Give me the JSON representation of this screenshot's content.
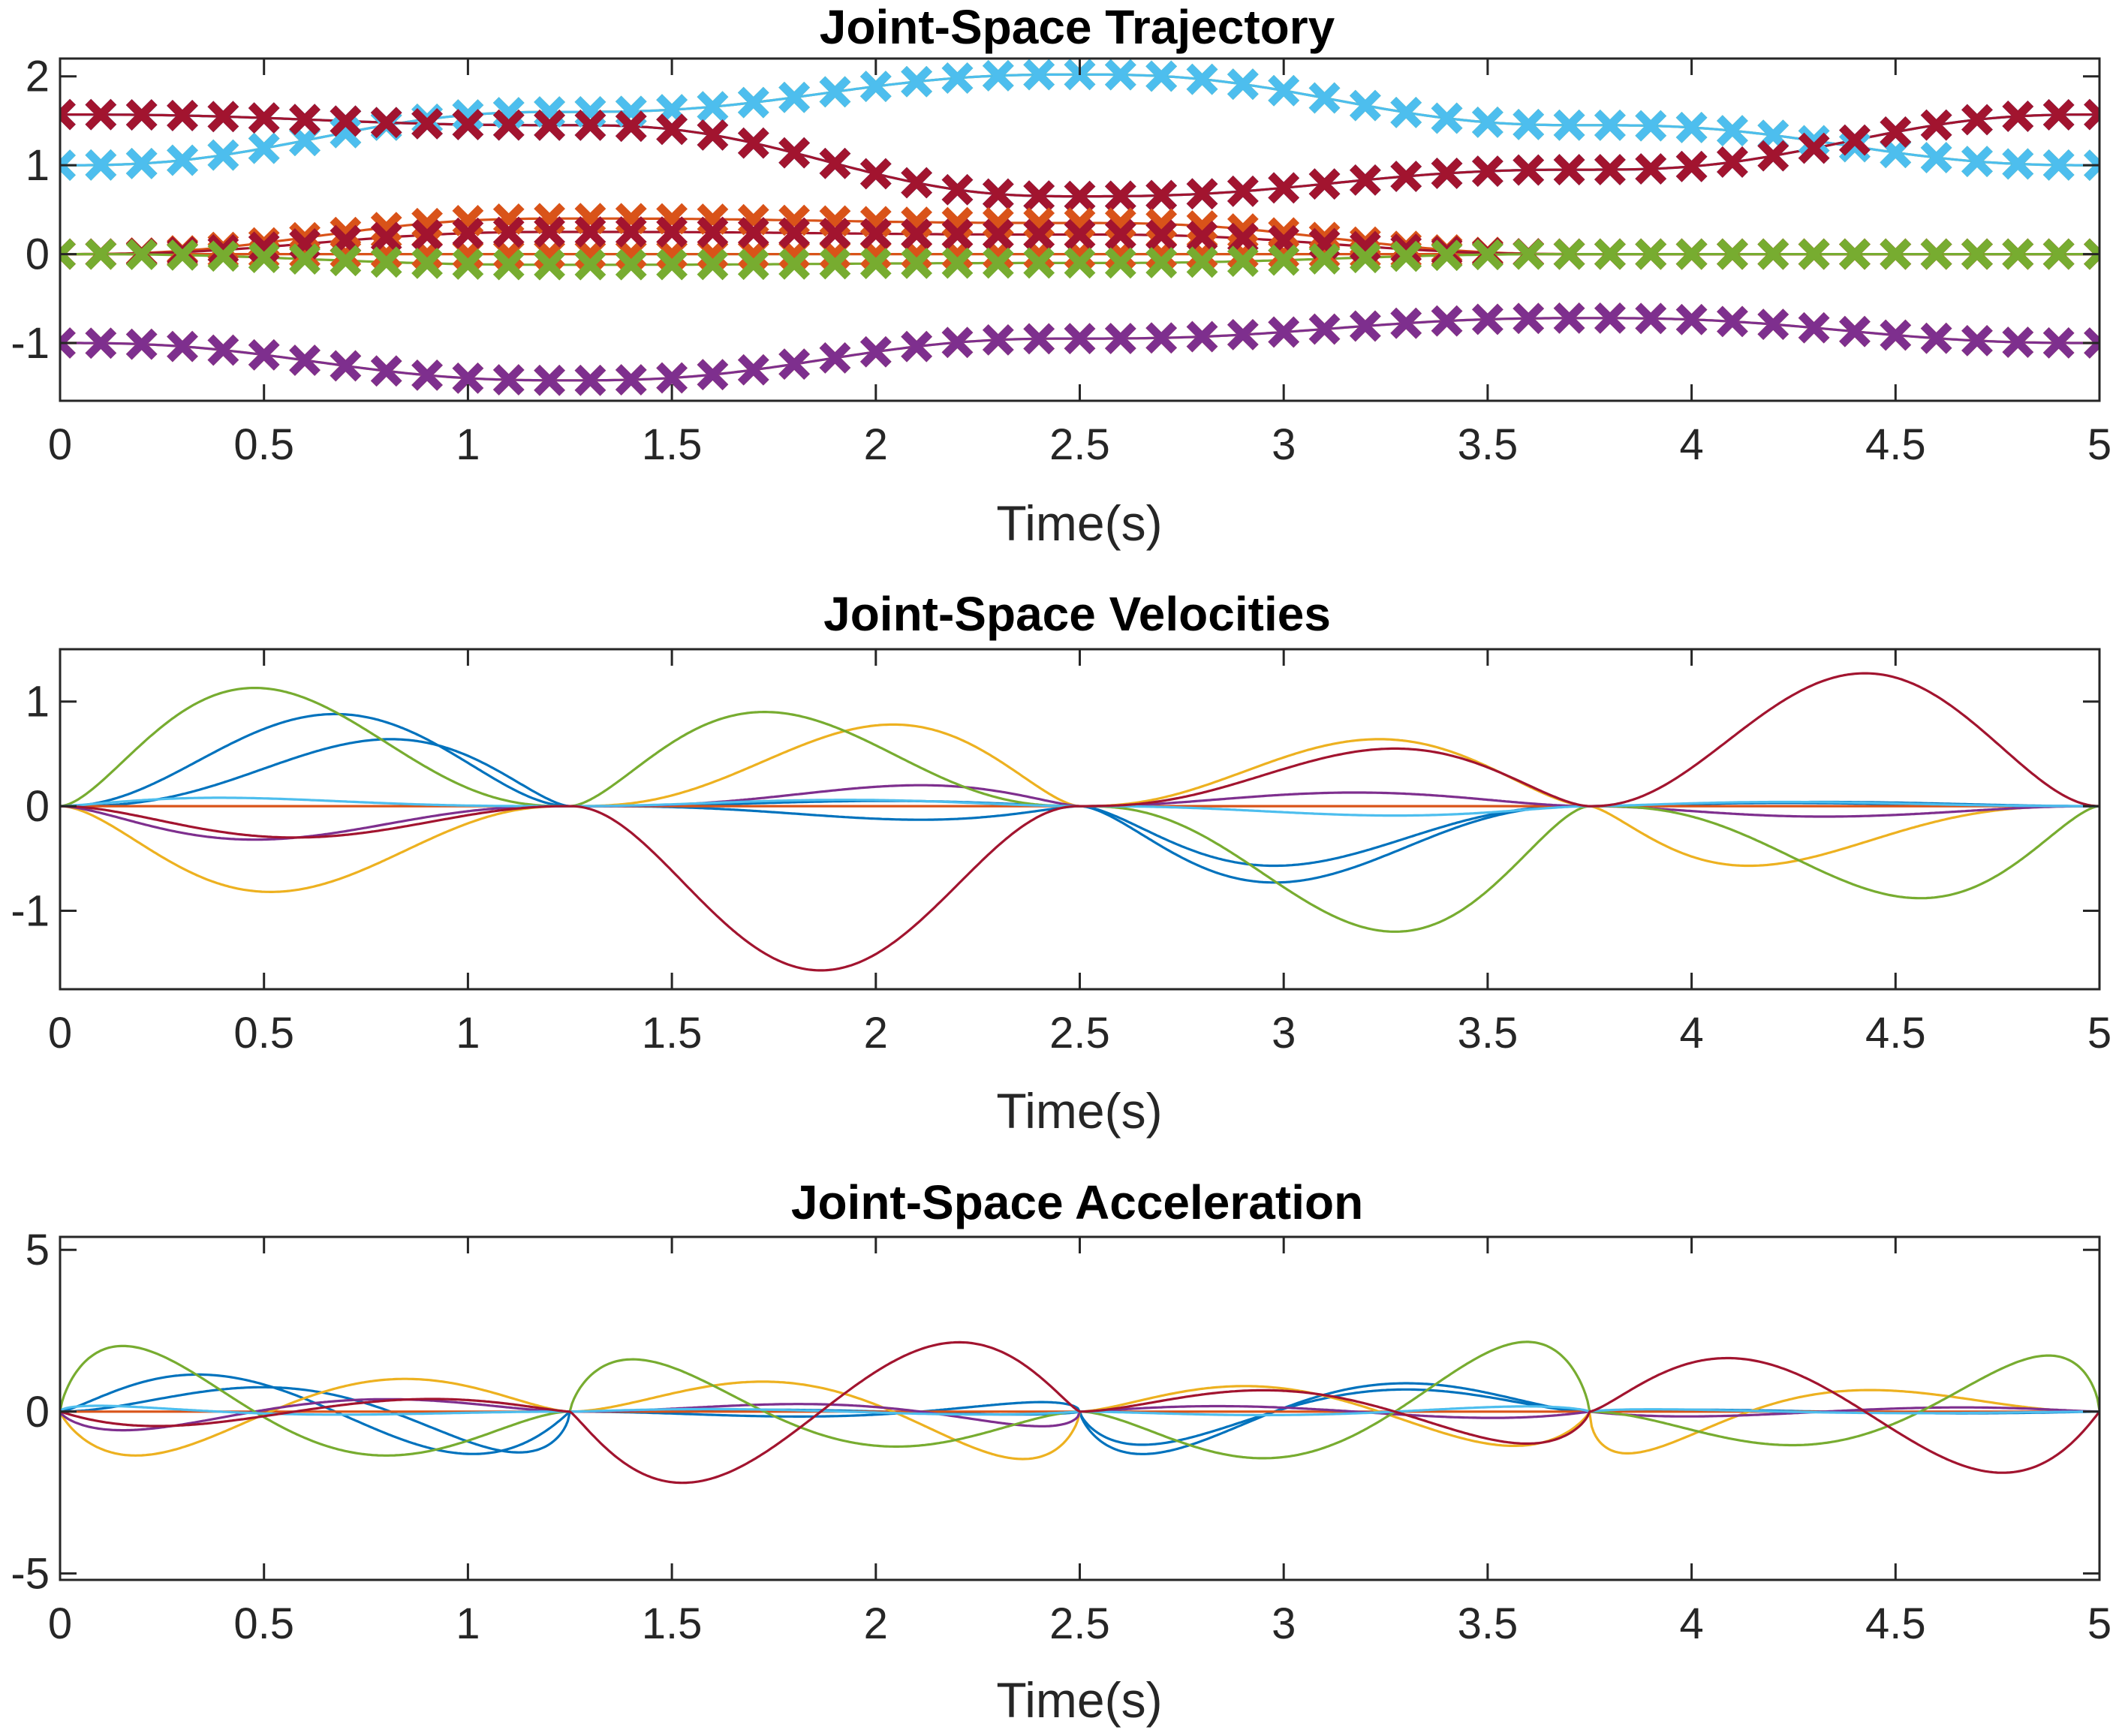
{
  "colors": {
    "c1": "#0072BD",
    "c2": "#D95319",
    "c3": "#EDB120",
    "c4": "#7E2F8E",
    "c5": "#77AC30",
    "c6": "#4DBEEE",
    "c7": "#A2142F"
  },
  "chart_data": [
    {
      "type": "line",
      "title": "Joint-Space Trajectory",
      "xlabel": "Time(s)",
      "ylabel": "",
      "xlim": [
        0,
        5
      ],
      "ylim": [
        -1.65,
        2.2
      ],
      "xticks": [
        "0",
        "0.5",
        "1",
        "1.5",
        "2",
        "2.5",
        "3",
        "3.5",
        "4",
        "4.5",
        "5"
      ],
      "yticks": [
        "-1",
        "0",
        "1",
        "2"
      ],
      "waypoints_t": [
        0,
        1.25,
        2.5,
        3.75,
        5
      ],
      "marker_times": [
        0,
        0.1,
        0.2,
        0.3,
        0.4,
        0.5,
        0.6,
        0.7,
        0.8,
        0.9,
        1.0,
        1.1,
        1.2,
        1.3,
        1.4,
        1.5,
        1.6,
        1.7,
        1.8,
        1.9,
        2.0,
        2.1,
        2.2,
        2.3,
        2.4,
        2.5,
        2.6,
        2.7,
        2.8,
        2.9,
        3.0,
        3.1,
        3.2,
        3.3,
        3.4,
        3.5,
        3.6,
        3.7,
        3.8,
        3.9,
        4.0,
        4.1,
        4.2,
        4.3,
        4.4,
        4.5,
        4.6,
        4.7,
        4.8,
        4.9,
        5.0
      ],
      "marker": "x",
      "series": [
        {
          "color": "#0072BD",
          "waypoints": [
            1.57,
            1.45,
            0.65,
            0.95,
            1.57
          ]
        },
        {
          "color": "#D95319",
          "waypoints": [
            0,
            0,
            0,
            0,
            0
          ]
        },
        {
          "color": "#EDB120",
          "waypoints": [
            -1.0,
            -1.42,
            -0.95,
            -0.72,
            -1.0
          ]
        },
        {
          "color": "#7E2F8E",
          "waypoints": [
            -1.0,
            -1.42,
            -0.95,
            -0.72,
            -1.0
          ]
        },
        {
          "color": "#77AC30",
          "waypoints": [
            1.0,
            1.6,
            2.02,
            1.45,
            1.0
          ]
        },
        {
          "color": "#4DBEEE",
          "waypoints": [
            1.0,
            1.6,
            2.02,
            1.45,
            1.0
          ]
        },
        {
          "color": "#A2142F",
          "waypoints": [
            1.57,
            1.45,
            0.65,
            0.95,
            1.57
          ]
        },
        {
          "color": "#D95319",
          "waypoints": [
            0,
            0.4,
            0.35,
            0,
            0
          ]
        },
        {
          "color": "#A2142F",
          "waypoints": [
            0,
            0.25,
            0.22,
            0,
            0
          ]
        },
        {
          "color": "#77AC30",
          "waypoints": [
            0,
            -0.12,
            -0.1,
            0,
            0
          ]
        }
      ]
    },
    {
      "type": "line",
      "title": "Joint-Space Velocities",
      "xlabel": "Time(s)",
      "ylabel": "",
      "xlim": [
        0,
        5
      ],
      "ylim": [
        -1.75,
        1.5
      ],
      "xticks": [
        "0",
        "0.5",
        "1",
        "1.5",
        "2",
        "2.5",
        "3",
        "3.5",
        "4",
        "4.5",
        "5"
      ],
      "yticks": [
        "-1",
        "0",
        "1"
      ],
      "segments_t": [
        0,
        1.25,
        2.5,
        3.75,
        5
      ],
      "series": [
        {
          "color": "#0072BD",
          "peaks": [
            0.88,
            0.05,
            -0.73,
            0.03
          ],
          "peak_times": [
            0.65,
            1.95,
            3.05,
            4.3
          ]
        },
        {
          "color": "#0072BD",
          "peaks": [
            0.64,
            -0.13,
            -0.57,
            0.04
          ],
          "peak_times": [
            0.72,
            2.0,
            3.05,
            4.35
          ]
        },
        {
          "color": "#D95319",
          "peaks": [
            0,
            0,
            0,
            0
          ],
          "peak_times": [
            0.6,
            1.85,
            3.1,
            4.35
          ]
        },
        {
          "color": "#EDB120",
          "peaks": [
            -0.82,
            0.78,
            0.64,
            -0.57
          ],
          "peak_times": [
            0.57,
            1.96,
            3.18,
            4.25
          ]
        },
        {
          "color": "#7E2F8E",
          "peaks": [
            -0.32,
            0.2,
            0.13,
            -0.1
          ],
          "peak_times": [
            0.55,
            2.0,
            3.15,
            4.35
          ]
        },
        {
          "color": "#77AC30",
          "peaks": [
            1.13,
            0.9,
            -1.2,
            -0.88
          ],
          "peak_times": [
            0.55,
            1.8,
            3.2,
            4.47
          ]
        },
        {
          "color": "#4DBEEE",
          "peaks": [
            0.08,
            0.06,
            -0.09,
            0.04
          ],
          "peak_times": [
            0.5,
            1.9,
            3.2,
            4.3
          ]
        },
        {
          "color": "#A2142F",
          "peaks": [
            -0.3,
            -1.57,
            0.55,
            1.27
          ],
          "peak_times": [
            0.6,
            1.87,
            3.2,
            4.4
          ]
        }
      ]
    },
    {
      "type": "line",
      "title": "Joint-Space Acceleration",
      "xlabel": "Time(s)",
      "ylabel": "",
      "xlim": [
        0,
        5
      ],
      "ylim": [
        -5.2,
        5.4
      ],
      "xticks": [
        "0",
        "0.5",
        "1",
        "1.5",
        "2",
        "2.5",
        "3",
        "3.5",
        "4",
        "4.5",
        "5"
      ],
      "yticks": [
        "-5",
        "0",
        "5"
      ],
      "note_series_are_time_derivatives_of": "Joint-Space Velocities"
    }
  ]
}
